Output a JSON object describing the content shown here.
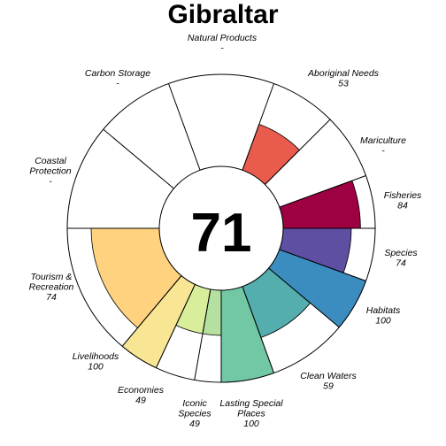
{
  "chart_data": {
    "type": "flower",
    "title": "Gibraltar",
    "overall_score": "71",
    "max": 100,
    "petals": [
      {
        "name": "Fisheries",
        "label_lines": [
          "Fisheries"
        ],
        "value_text": "84",
        "value": 84,
        "color": "#9e0142",
        "start_deg": 70,
        "end_deg": 90
      },
      {
        "name": "Mariculture",
        "label_lines": [
          "Mariculture"
        ],
        "value_text": "-",
        "value": null,
        "color": "#d53e4f",
        "start_deg": 45,
        "end_deg": 70
      },
      {
        "name": "Aboriginal Needs",
        "label_lines": [
          "Aboriginal Needs"
        ],
        "value_text": "53",
        "value": 53,
        "color": "#e95b4c",
        "start_deg": 20,
        "end_deg": 45
      },
      {
        "name": "Natural Products",
        "label_lines": [
          "Natural Products"
        ],
        "value_text": "-",
        "value": null,
        "color": "#f46d43",
        "start_deg": -20,
        "end_deg": 20
      },
      {
        "name": "Carbon Storage",
        "label_lines": [
          "Carbon Storage"
        ],
        "value_text": "-",
        "value": null,
        "color": "#fdae61",
        "start_deg": -50,
        "end_deg": -20
      },
      {
        "name": "Coastal Protection",
        "label_lines": [
          "Coastal",
          "Protection"
        ],
        "value_text": "-",
        "value": null,
        "color": "#fee08b",
        "start_deg": -90,
        "end_deg": -50
      },
      {
        "name": "Tourism & Recreation",
        "label_lines": [
          "Tourism &",
          "Recreation"
        ],
        "value_text": "74",
        "value": 74,
        "color": "#fed27e",
        "start_deg": -140,
        "end_deg": -90
      },
      {
        "name": "Livelihoods",
        "label_lines": [
          "Livelihoods"
        ],
        "value_text": "100",
        "value": 100,
        "color": "#f8e695",
        "start_deg": -155,
        "end_deg": -140
      },
      {
        "name": "Economies",
        "label_lines": [
          "Economies"
        ],
        "value_text": "49",
        "value": 49,
        "color": "#d9ee9a",
        "start_deg": -170,
        "end_deg": -155
      },
      {
        "name": "Iconic Species",
        "label_lines": [
          "Iconic",
          "Species"
        ],
        "value_text": "49",
        "value": 49,
        "color": "#b4e0a0",
        "start_deg": -180,
        "end_deg": -170
      },
      {
        "name": "Lasting Special Places",
        "label_lines": [
          "Lasting Special",
          "Places"
        ],
        "value_text": "100",
        "value": 100,
        "color": "#72c8a5",
        "start_deg": 160,
        "end_deg": 180
      },
      {
        "name": "Clean Waters",
        "label_lines": [
          "Clean Waters"
        ],
        "value_text": "59",
        "value": 59,
        "color": "#54aead",
        "start_deg": 130,
        "end_deg": 160
      },
      {
        "name": "Habitats",
        "label_lines": [
          "Habitats"
        ],
        "value_text": "100",
        "value": 100,
        "color": "#3b8dc0",
        "start_deg": 110,
        "end_deg": 130
      },
      {
        "name": "Species",
        "label_lines": [
          "Species"
        ],
        "value_text": "74",
        "value": 74,
        "color": "#5e4fa2",
        "start_deg": 90,
        "end_deg": 110
      }
    ]
  }
}
